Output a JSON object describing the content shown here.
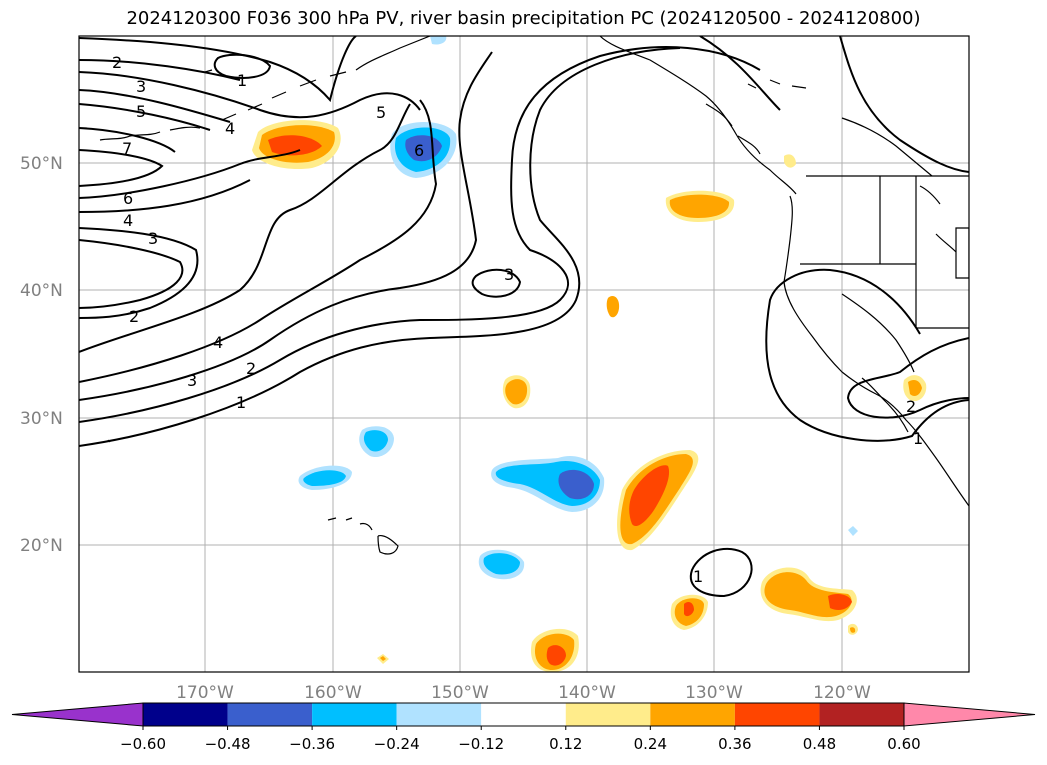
{
  "title": "2024120300 F036 300 hPa PV, river basin precipitation PC (2024120500 - 2024120800)",
  "map": {
    "lat_labels": [
      "50°N",
      "40°N",
      "30°N",
      "20°N"
    ],
    "lon_labels": [
      "170°W",
      "160°W",
      "150°W",
      "140°W",
      "130°W",
      "120°W"
    ],
    "contour_labels": [
      "1",
      "2",
      "3",
      "4",
      "5",
      "6",
      "7",
      "6",
      "4",
      "3",
      "2",
      "4",
      "3",
      "2",
      "1",
      "5",
      "3",
      "1",
      "2",
      "1"
    ],
    "colors": {
      "land_line": "#000000",
      "grid": "#b0b0b0",
      "contour": "#000000"
    }
  },
  "colorbar": {
    "colors": [
      "#9932cc",
      "#00008b",
      "#3a5fcd",
      "#00bfff",
      "#b0e2ff",
      "#ffffff",
      "#ffec8b",
      "#ffa500",
      "#ff4500",
      "#b22222",
      "#ff88aa"
    ],
    "tick_labels": [
      "−0.60",
      "−0.48",
      "−0.36",
      "−0.24",
      "−0.12",
      "0.12",
      "0.24",
      "0.36",
      "0.48",
      "0.60"
    ]
  }
}
